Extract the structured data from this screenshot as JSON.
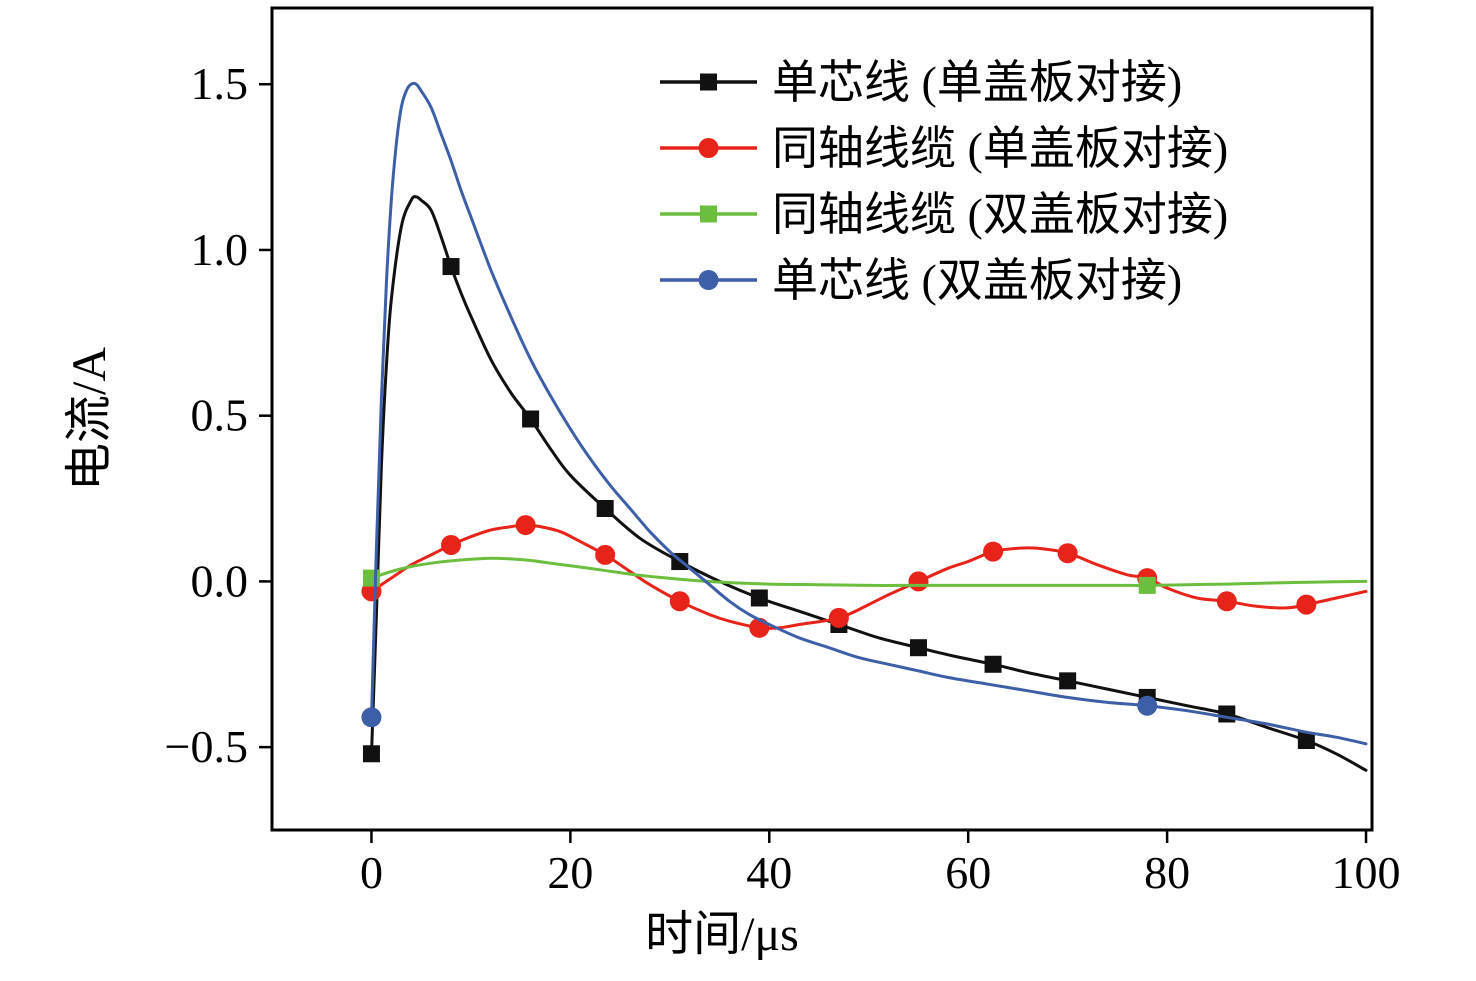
{
  "figure": {
    "background": "#ffffff"
  },
  "chart_data": {
    "type": "line",
    "title": "",
    "xlabel": "时间/μs",
    "ylabel": "电流/A",
    "xlim": [
      -10,
      100.6
    ],
    "ylim": [
      -0.75,
      1.73
    ],
    "xticks": [
      0,
      20,
      40,
      60,
      80,
      100
    ],
    "xtick_labels": [
      "0",
      "20",
      "40",
      "60",
      "80",
      "100"
    ],
    "yticks": [
      -0.5,
      0,
      0.5,
      1,
      1.5
    ],
    "ytick_labels": [
      "−0.5",
      "0.0",
      "0.5",
      "1.0",
      "1.5"
    ],
    "grid": false,
    "legend_position": "upper-right-inside",
    "series": [
      {
        "name": "单芯线 (单盖板对接)",
        "color": "#111111",
        "marker": "square",
        "line_width": 3,
        "x": [
          0,
          0.5,
          1,
          1.5,
          2,
          3,
          4,
          4.5,
          5,
          6,
          7,
          8,
          9,
          10,
          12,
          14,
          16,
          18,
          20,
          23.5,
          27,
          31,
          35,
          39,
          43,
          47,
          51,
          55,
          58.5,
          62.5,
          66,
          70,
          74,
          78,
          82,
          86,
          90,
          94,
          97,
          100
        ],
        "y": [
          -0.52,
          -0.1,
          0.35,
          0.65,
          0.85,
          1.07,
          1.15,
          1.16,
          1.15,
          1.12,
          1.04,
          0.95,
          0.87,
          0.8,
          0.67,
          0.57,
          0.49,
          0.4,
          0.32,
          0.22,
          0.13,
          0.06,
          0,
          -0.05,
          -0.09,
          -0.13,
          -0.17,
          -0.2,
          -0.225,
          -0.25,
          -0.275,
          -0.3,
          -0.325,
          -0.35,
          -0.375,
          -0.4,
          -0.44,
          -0.48,
          -0.52,
          -0.57
        ],
        "marker_x": [
          0,
          8,
          16,
          23.5,
          31,
          39,
          47,
          55,
          62.5,
          70,
          78,
          86,
          94
        ],
        "marker_y": [
          -0.52,
          0.95,
          0.49,
          0.22,
          0.06,
          -0.05,
          -0.13,
          -0.2,
          -0.25,
          -0.3,
          -0.35,
          -0.4,
          -0.48
        ]
      },
      {
        "name": "同轴线缆 (单盖板对接)",
        "color": "#e8231a",
        "marker": "circle",
        "line_width": 3,
        "x": [
          0,
          2,
          4,
          6,
          8,
          10,
          12,
          14,
          15.5,
          17,
          19,
          21,
          23.5,
          26,
          28,
          31,
          34,
          36,
          39,
          41,
          43,
          47,
          50,
          52,
          55,
          58,
          60,
          62.5,
          65,
          67,
          70,
          73,
          76,
          78,
          80,
          83,
          86,
          89,
          92,
          94,
          97,
          100
        ],
        "y": [
          -0.03,
          0.01,
          0.05,
          0.08,
          0.11,
          0.135,
          0.155,
          0.165,
          0.17,
          0.165,
          0.15,
          0.12,
          0.08,
          0.03,
          -0.01,
          -0.06,
          -0.1,
          -0.12,
          -0.14,
          -0.14,
          -0.13,
          -0.11,
          -0.07,
          -0.04,
          0,
          0.04,
          0.06,
          0.09,
          0.1,
          0.1,
          0.085,
          0.05,
          0.02,
          0.01,
          -0.02,
          -0.05,
          -0.06,
          -0.075,
          -0.08,
          -0.07,
          -0.05,
          -0.03
        ],
        "marker_x": [
          0,
          8,
          15.5,
          23.5,
          31,
          39,
          47,
          55,
          62.5,
          70,
          78,
          86,
          94
        ],
        "marker_y": [
          -0.03,
          0.11,
          0.17,
          0.08,
          -0.06,
          -0.14,
          -0.11,
          0,
          0.09,
          0.085,
          0.01,
          -0.06,
          -0.07
        ]
      },
      {
        "name": "同轴线缆 (双盖板对接)",
        "color": "#6cbf3e",
        "marker": "square",
        "line_width": 3,
        "x": [
          0,
          2,
          4,
          6,
          8,
          10,
          12,
          14,
          16,
          18,
          20,
          23,
          26,
          29,
          32,
          35,
          40,
          45,
          50,
          55,
          60,
          65,
          70,
          75,
          78,
          82,
          86,
          90,
          95,
          100
        ],
        "y": [
          0.01,
          0.03,
          0.045,
          0.055,
          0.062,
          0.067,
          0.07,
          0.068,
          0.063,
          0.055,
          0.047,
          0.035,
          0.022,
          0.012,
          0.004,
          -0.002,
          -0.008,
          -0.01,
          -0.012,
          -0.012,
          -0.012,
          -0.012,
          -0.012,
          -0.012,
          -0.012,
          -0.01,
          -0.008,
          -0.005,
          -0.002,
          0
        ],
        "marker_x": [
          0,
          78
        ],
        "marker_y": [
          0.01,
          -0.012
        ]
      },
      {
        "name": "单芯线 (双盖板对接)",
        "color": "#3c5fa8",
        "marker": "circle",
        "line_width": 3,
        "x": [
          0,
          0.5,
          1,
          1.5,
          2,
          2.5,
          3,
          3.5,
          4,
          4.5,
          5,
          6,
          7,
          8,
          9,
          10,
          12,
          14,
          16,
          18,
          20,
          22,
          24,
          26,
          28,
          30,
          32,
          34,
          36,
          38,
          40,
          43,
          46,
          49,
          52,
          55,
          58,
          62,
          66,
          70,
          74,
          78,
          82,
          86,
          90,
          94,
          97,
          100
        ],
        "y": [
          -0.41,
          0.1,
          0.55,
          0.9,
          1.15,
          1.32,
          1.43,
          1.48,
          1.5,
          1.5,
          1.48,
          1.43,
          1.35,
          1.27,
          1.18,
          1.1,
          0.94,
          0.8,
          0.67,
          0.56,
          0.46,
          0.37,
          0.29,
          0.22,
          0.15,
          0.09,
          0.04,
          -0.01,
          -0.06,
          -0.1,
          -0.13,
          -0.17,
          -0.2,
          -0.23,
          -0.25,
          -0.27,
          -0.29,
          -0.31,
          -0.33,
          -0.35,
          -0.365,
          -0.375,
          -0.39,
          -0.41,
          -0.43,
          -0.455,
          -0.47,
          -0.49
        ],
        "marker_x": [
          0,
          78
        ],
        "marker_y": [
          -0.41,
          -0.375
        ]
      }
    ]
  }
}
